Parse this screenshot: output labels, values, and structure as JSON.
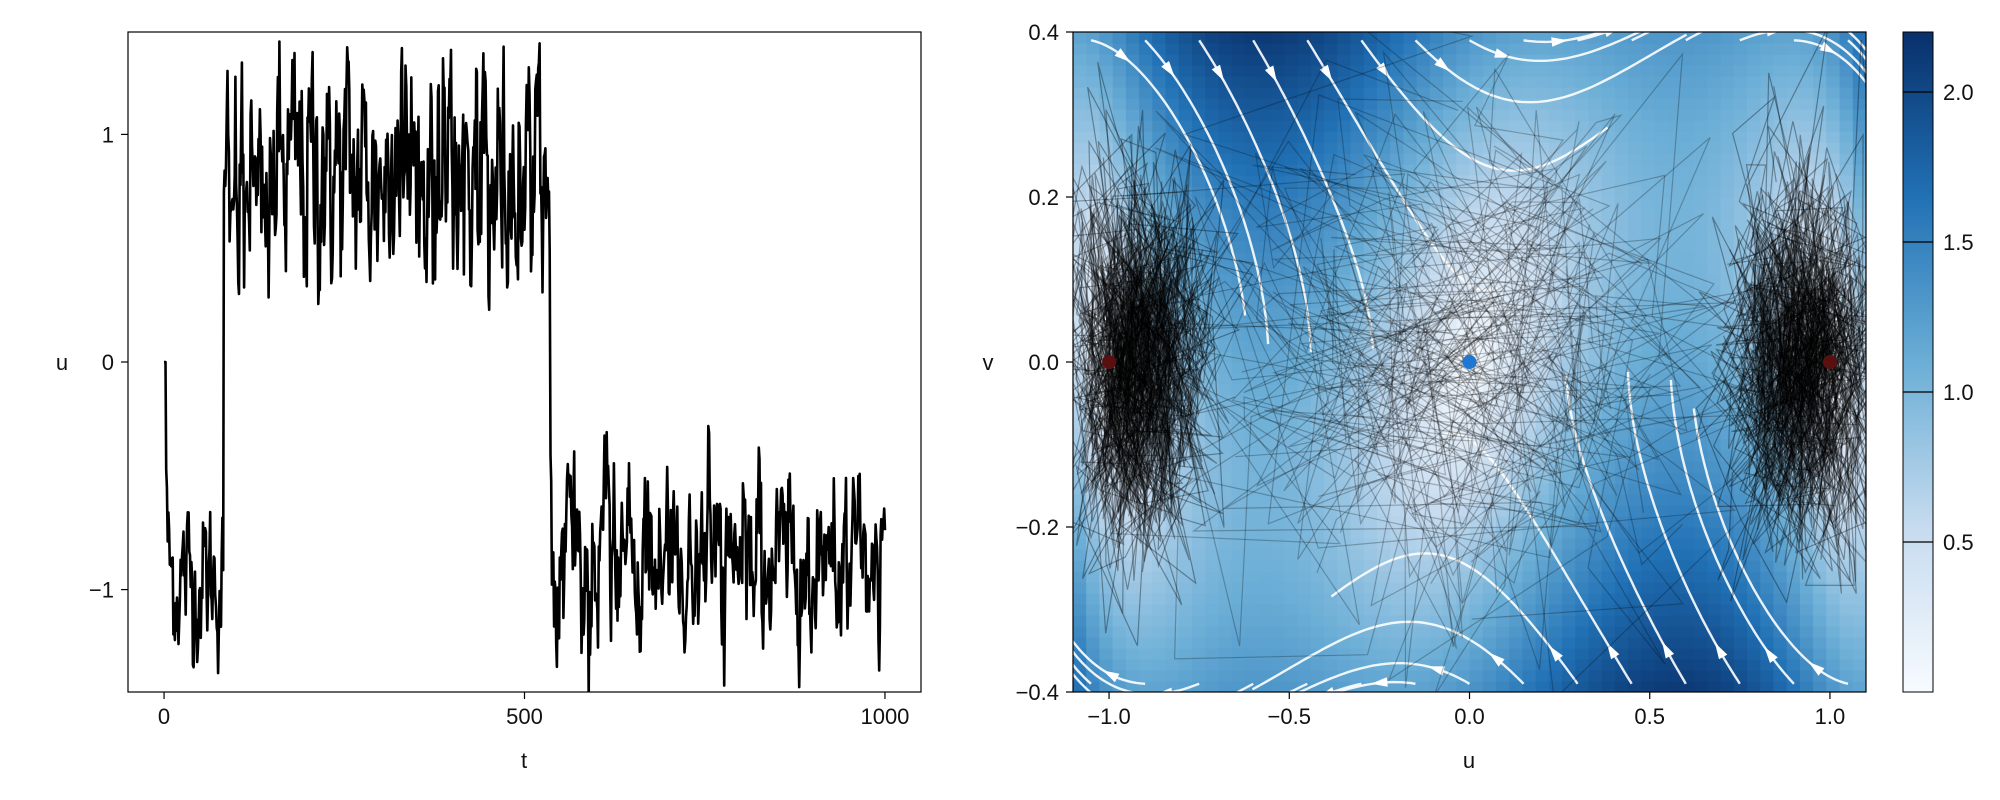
{
  "chart_data": [
    {
      "type": "line",
      "title": "",
      "xlabel": "t",
      "ylabel": "u",
      "xlim": [
        -50,
        1050
      ],
      "ylim": [
        -1.45,
        1.45
      ],
      "xticks": [
        0,
        500,
        1000
      ],
      "xtick_labels": [
        "0",
        "500",
        "1000"
      ],
      "yticks": [
        -1,
        0,
        1
      ],
      "ytick_labels": [
        "−1",
        "0",
        "1"
      ],
      "grid": false,
      "series": [
        {
          "color": "#000000",
          "segments": [
            {
              "t_start": 0,
              "t_end": 2,
              "mean": 0.0,
              "noise": 0.0
            },
            {
              "t_start": 2,
              "t_end": 82,
              "mean": -0.95,
              "noise": 0.12
            },
            {
              "t_start": 82,
              "t_end": 535,
              "mean": 0.82,
              "noise": 0.2
            },
            {
              "t_start": 535,
              "t_end": 1000,
              "mean": -0.88,
              "noise": 0.13
            }
          ],
          "points": 1000
        }
      ]
    },
    {
      "type": "heatmap",
      "title": "",
      "xlabel": "u",
      "ylabel": "v",
      "xlim": [
        -1.1,
        1.1
      ],
      "ylim": [
        -0.4,
        0.4
      ],
      "xticks": [
        -1.0,
        -0.5,
        0.0,
        0.5,
        1.0
      ],
      "xtick_labels": [
        "−1.0",
        "−0.5",
        "0.0",
        "0.5",
        "1.0"
      ],
      "yticks": [
        -0.4,
        -0.2,
        0.0,
        0.2,
        0.4
      ],
      "ytick_labels": [
        "−0.4",
        "−0.2",
        "0.0",
        "0.2",
        "0.4"
      ],
      "colormap": "Blues",
      "colorbar": {
        "range": [
          0.0,
          2.2
        ],
        "ticks": [
          0.5,
          1.0,
          1.5,
          2.0
        ],
        "tick_labels": [
          "0.5",
          "1.0",
          "1.5",
          "2.0"
        ]
      },
      "colors": {
        "low": "#f7fbff",
        "high": "#08306b",
        "streamlines": "#ffffff",
        "trajectories": "#000000"
      },
      "fixed_points": [
        {
          "u": -1.0,
          "v": 0.0,
          "color": "#5a1010",
          "kind": "stable"
        },
        {
          "u": 0.0,
          "v": 0.0,
          "color": "#1f77d4",
          "kind": "saddle"
        },
        {
          "u": 1.0,
          "v": 0.0,
          "color": "#5a1010",
          "kind": "stable"
        }
      ]
    }
  ]
}
